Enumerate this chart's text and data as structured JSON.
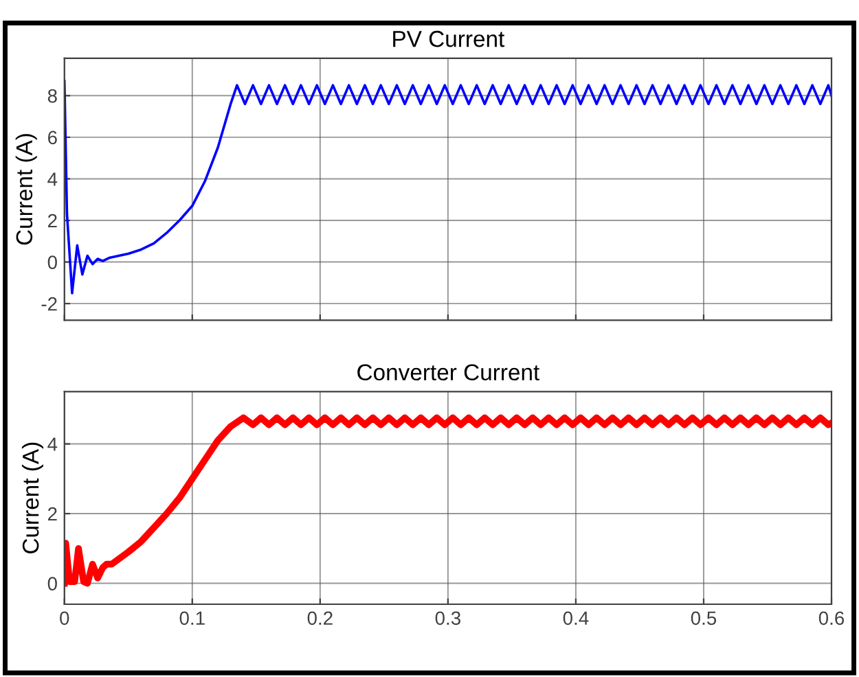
{
  "chart_data": [
    {
      "type": "line",
      "title": "PV Current",
      "ylabel": "Current (A)",
      "xlim": [
        0,
        0.6
      ],
      "xticks": [
        0,
        0.1,
        0.2,
        0.3,
        0.4,
        0.5,
        0.6
      ],
      "ylim": [
        -2.8,
        9.8
      ],
      "yticks": [
        -2,
        0,
        2,
        4,
        6,
        8
      ],
      "grid": true,
      "tick_labels": "y",
      "x": [
        0,
        0.002,
        0.006,
        0.01,
        0.014,
        0.018,
        0.022,
        0.026,
        0.03,
        0.035,
        0.05,
        0.06,
        0.07,
        0.08,
        0.09,
        0.1,
        0.11,
        0.12,
        0.13,
        0.135,
        0.14125,
        0.1475,
        0.15375,
        0.16,
        0.16625,
        0.1725,
        0.17875,
        0.185,
        0.19125,
        0.1975,
        0.20375,
        0.21,
        0.21625,
        0.2225,
        0.22875,
        0.235,
        0.24125,
        0.2475,
        0.25375,
        0.26,
        0.26625,
        0.2725,
        0.27875,
        0.285,
        0.29125,
        0.2975,
        0.30375,
        0.31,
        0.31625,
        0.3225,
        0.32875,
        0.335,
        0.34125,
        0.3475,
        0.35375,
        0.36,
        0.36625,
        0.3725,
        0.37875,
        0.385,
        0.39125,
        0.3975,
        0.40375,
        0.41,
        0.41625,
        0.4225,
        0.42875,
        0.435,
        0.44125,
        0.4475,
        0.45375,
        0.46,
        0.46625,
        0.4725,
        0.47875,
        0.485,
        0.49125,
        0.4975,
        0.50375,
        0.51,
        0.51625,
        0.5225,
        0.52875,
        0.535,
        0.54125,
        0.5475,
        0.55375,
        0.56,
        0.56625,
        0.5725,
        0.57875,
        0.585,
        0.59125,
        0.5975,
        0.6
      ],
      "series": [
        {
          "color": "#0000ff",
          "values": [
            8.7,
            2.3,
            -1.5,
            0.8,
            -0.6,
            0.3,
            -0.1,
            0.15,
            0.05,
            0.2,
            0.4,
            0.6,
            0.9,
            1.4,
            2.0,
            2.7,
            3.9,
            5.5,
            7.6,
            8.5,
            7.6,
            8.5,
            7.6,
            8.5,
            7.6,
            8.5,
            7.6,
            8.5,
            7.6,
            8.5,
            7.6,
            8.5,
            7.6,
            8.5,
            7.6,
            8.5,
            7.6,
            8.5,
            7.6,
            8.5,
            7.6,
            8.5,
            7.6,
            8.5,
            7.6,
            8.5,
            7.6,
            8.5,
            7.6,
            8.5,
            7.6,
            8.5,
            7.6,
            8.5,
            7.6,
            8.5,
            7.6,
            8.5,
            7.6,
            8.5,
            7.6,
            8.5,
            7.6,
            8.5,
            7.6,
            8.5,
            7.6,
            8.5,
            7.6,
            8.5,
            7.6,
            8.5,
            7.6,
            8.5,
            7.6,
            8.5,
            7.6,
            8.5,
            7.6,
            8.5,
            7.6,
            8.5,
            7.6,
            8.5,
            7.6,
            8.5,
            7.6,
            8.5,
            7.6,
            8.5,
            7.6,
            8.5,
            7.6,
            8.5,
            8.0
          ]
        }
      ]
    },
    {
      "type": "line",
      "title": "Converter Current",
      "ylabel": "Current (A)",
      "xlim": [
        0,
        0.6
      ],
      "xticks": [
        0,
        0.1,
        0.2,
        0.3,
        0.4,
        0.5,
        0.6
      ],
      "ylim": [
        -0.6,
        5.5
      ],
      "yticks": [
        0,
        2,
        4
      ],
      "grid": true,
      "x": [
        0,
        0.001,
        0.004,
        0.008,
        0.011,
        0.015,
        0.018,
        0.022,
        0.026,
        0.03,
        0.033,
        0.037,
        0.05,
        0.06,
        0.07,
        0.08,
        0.09,
        0.1,
        0.11,
        0.12,
        0.13,
        0.14,
        0.1475,
        0.15375,
        0.16,
        0.16625,
        0.1725,
        0.17875,
        0.185,
        0.19125,
        0.1975,
        0.20375,
        0.21,
        0.21625,
        0.2225,
        0.22875,
        0.235,
        0.24125,
        0.2475,
        0.25375,
        0.26,
        0.26625,
        0.2725,
        0.27875,
        0.285,
        0.29125,
        0.2975,
        0.30375,
        0.31,
        0.31625,
        0.3225,
        0.32875,
        0.335,
        0.34125,
        0.3475,
        0.35375,
        0.36,
        0.36625,
        0.3725,
        0.37875,
        0.385,
        0.39125,
        0.3975,
        0.40375,
        0.41,
        0.41625,
        0.4225,
        0.42875,
        0.435,
        0.44125,
        0.4475,
        0.45375,
        0.46,
        0.46625,
        0.4725,
        0.47875,
        0.485,
        0.49125,
        0.4975,
        0.50375,
        0.51,
        0.51625,
        0.5225,
        0.52875,
        0.535,
        0.54125,
        0.5475,
        0.55375,
        0.56,
        0.56625,
        0.5725,
        0.57875,
        0.585,
        0.59125,
        0.5975,
        0.6
      ],
      "series": [
        {
          "color": "#ff0000",
          "values": [
            0,
            1.15,
            0.05,
            0.05,
            1.0,
            0.05,
            0,
            0.55,
            0.15,
            0.45,
            0.55,
            0.55,
            0.9,
            1.2,
            1.6,
            2.0,
            2.45,
            3.0,
            3.55,
            4.1,
            4.5,
            4.75,
            4.55,
            4.75,
            4.55,
            4.75,
            4.55,
            4.75,
            4.55,
            4.75,
            4.55,
            4.75,
            4.55,
            4.75,
            4.55,
            4.75,
            4.55,
            4.75,
            4.55,
            4.75,
            4.55,
            4.75,
            4.55,
            4.75,
            4.55,
            4.75,
            4.55,
            4.75,
            4.55,
            4.75,
            4.55,
            4.75,
            4.55,
            4.75,
            4.55,
            4.75,
            4.55,
            4.75,
            4.55,
            4.75,
            4.55,
            4.75,
            4.55,
            4.75,
            4.55,
            4.75,
            4.55,
            4.75,
            4.55,
            4.75,
            4.55,
            4.75,
            4.55,
            4.75,
            4.55,
            4.75,
            4.55,
            4.75,
            4.55,
            4.75,
            4.55,
            4.75,
            4.55,
            4.75,
            4.55,
            4.75,
            4.55,
            4.75,
            4.55,
            4.75,
            4.55,
            4.75,
            4.55,
            4.75,
            4.55,
            4.6
          ]
        }
      ]
    }
  ]
}
